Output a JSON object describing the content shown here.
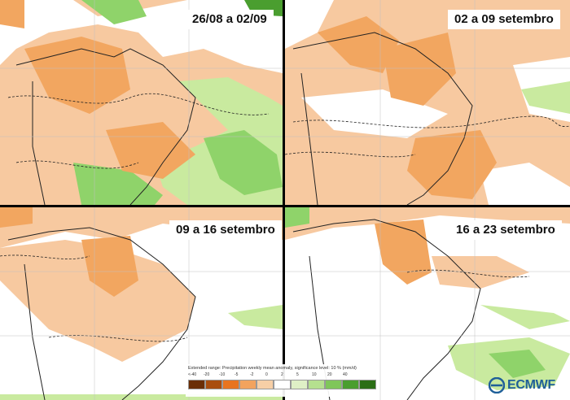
{
  "panels": [
    {
      "title": "26/08 a 02/09"
    },
    {
      "title": "02 a 09 setembro"
    },
    {
      "title": "09 a 16 setembro"
    },
    {
      "title": "16 a 23 setembro"
    }
  ],
  "legend": {
    "title": "Extended range: Precipitation weekly mean anomaly, significance level: 10 % (mm/d)",
    "ticks": [
      "<-40",
      "-20",
      "-10",
      "-5",
      "-2",
      "0",
      "2",
      "5",
      "10",
      "20",
      "40"
    ],
    "colors": [
      "#6b2e06",
      "#a94d0f",
      "#e8741f",
      "#f2a35e",
      "#f7cfa6",
      "#ffffff",
      "#dff0c6",
      "#b5e08f",
      "#7fc65a",
      "#4a9e2f",
      "#2b6e16"
    ]
  },
  "logo": {
    "text": "ECMWF"
  },
  "colors": {
    "dry_light": "#f7c9a0",
    "dry_medium": "#f2a660",
    "wet_light": "#c9ea9f",
    "wet_medium": "#8fd36a",
    "coast": "#222222",
    "border": "#888888"
  }
}
